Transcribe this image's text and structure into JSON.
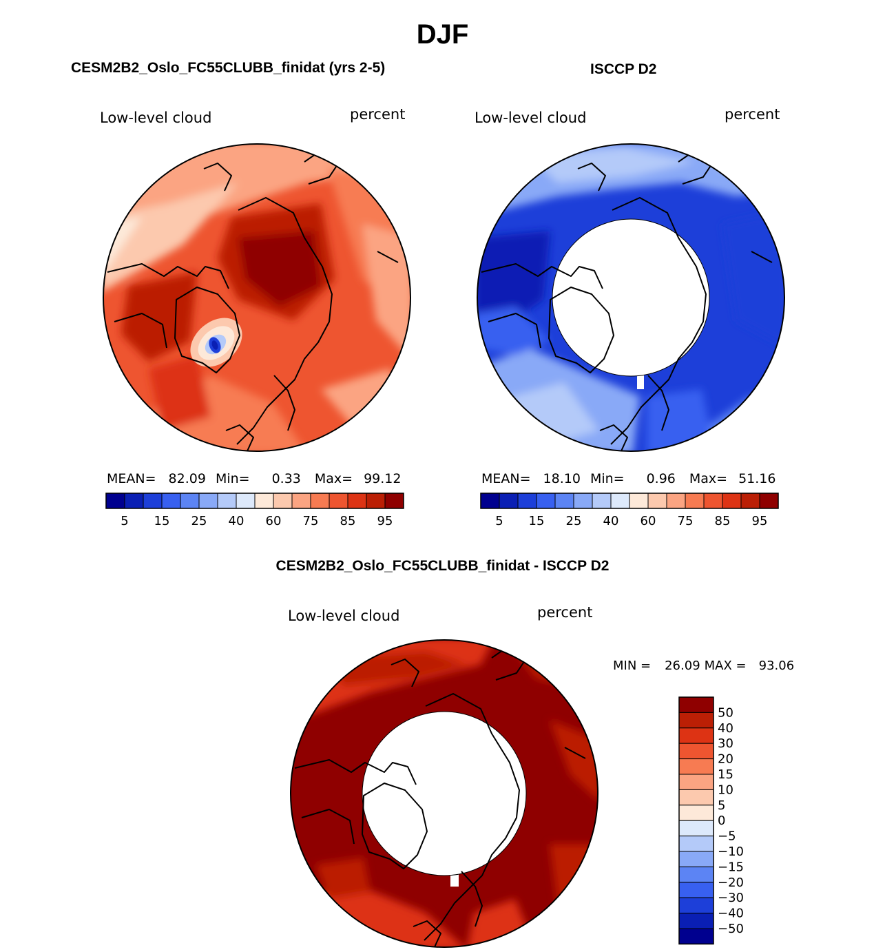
{
  "page": {
    "title": "DJF"
  },
  "panels": [
    {
      "title": "CESM2B2_Oslo_FC55CLUBB_finidat (yrs 2-5)",
      "left_label": "Low-level cloud",
      "right_label": "percent",
      "stats": {
        "mean_label": "MEAN=",
        "mean_value": "82.09",
        "min_label": "Min=",
        "min_value": "0.33",
        "max_label": "Max=",
        "max_value": "99.12"
      }
    },
    {
      "title": "ISCCP D2",
      "left_label": "Low-level cloud",
      "right_label": "percent",
      "stats": {
        "mean_label": "MEAN=",
        "mean_value": "18.10",
        "min_label": "Min=",
        "min_value": "0.96",
        "max_label": "Max=",
        "max_value": "51.16"
      }
    },
    {
      "title": "CESM2B2_Oslo_FC55CLUBB_finidat - ISCCP D2",
      "left_label": "Low-level cloud",
      "right_label": "percent",
      "stats": {
        "min_label": "MIN =",
        "min_value": "26.09",
        "max_label": "MAX =",
        "max_value": "93.06"
      }
    }
  ],
  "chart_data": [
    {
      "type": "heatmap",
      "projection": "north-polar-stereographic",
      "title": "CESM2B2_Oslo_FC55CLUBB_finidat (yrs 2-5)",
      "variable": "Low-level cloud",
      "units": "percent",
      "mean": 82.09,
      "min": 0.33,
      "max": 99.12,
      "colorbar": {
        "orientation": "horizontal",
        "levels": [
          5,
          10,
          15,
          20,
          25,
          30,
          40,
          50,
          60,
          70,
          75,
          80,
          85,
          90,
          95
        ],
        "tick_labels": [
          "5",
          "15",
          "25",
          "40",
          "60",
          "75",
          "85",
          "95"
        ],
        "colors": [
          "#00008f",
          "#0a1fb4",
          "#1d3fd9",
          "#3860f0",
          "#5c84f4",
          "#89a9f7",
          "#b4caf9",
          "#dde9fb",
          "#fde9d9",
          "#fcc9ae",
          "#fba482",
          "#f77b52",
          "#ee5530",
          "#dd3314",
          "#bb1f05",
          "#8f0000"
        ]
      }
    },
    {
      "type": "heatmap",
      "projection": "north-polar-stereographic",
      "title": "ISCCP D2",
      "variable": "Low-level cloud",
      "units": "percent",
      "mean": 18.1,
      "min": 0.96,
      "max": 51.16,
      "colorbar": {
        "orientation": "horizontal",
        "levels": [
          5,
          10,
          15,
          20,
          25,
          30,
          40,
          50,
          60,
          70,
          75,
          80,
          85,
          90,
          95
        ],
        "tick_labels": [
          "5",
          "15",
          "25",
          "40",
          "60",
          "75",
          "85",
          "95"
        ],
        "colors": [
          "#00008f",
          "#0a1fb4",
          "#1d3fd9",
          "#3860f0",
          "#5c84f4",
          "#89a9f7",
          "#b4caf9",
          "#dde9fb",
          "#fde9d9",
          "#fcc9ae",
          "#fba482",
          "#f77b52",
          "#ee5530",
          "#dd3314",
          "#bb1f05",
          "#8f0000"
        ]
      }
    },
    {
      "type": "heatmap",
      "projection": "north-polar-stereographic",
      "title": "CESM2B2_Oslo_FC55CLUBB_finidat - ISCCP D2",
      "variable": "Low-level cloud",
      "units": "percent",
      "min": 26.09,
      "max": 93.06,
      "colorbar": {
        "orientation": "vertical",
        "levels": [
          -50,
          -40,
          -30,
          -20,
          -15,
          -10,
          -5,
          0,
          5,
          10,
          15,
          20,
          30,
          40,
          50
        ],
        "tick_labels": [
          "50",
          "40",
          "30",
          "20",
          "15",
          "10",
          "5",
          "0",
          "−5",
          "−10",
          "−15",
          "−20",
          "−30",
          "−40",
          "−50"
        ],
        "colors_top_to_bottom": [
          "#8f0000",
          "#bb1f05",
          "#dd3314",
          "#ee5530",
          "#f77b52",
          "#fba482",
          "#fcc9ae",
          "#fde9d9",
          "#dde9fb",
          "#b4caf9",
          "#89a9f7",
          "#5c84f4",
          "#3860f0",
          "#1d3fd9",
          "#0a1fb4",
          "#00008f"
        ]
      }
    }
  ]
}
